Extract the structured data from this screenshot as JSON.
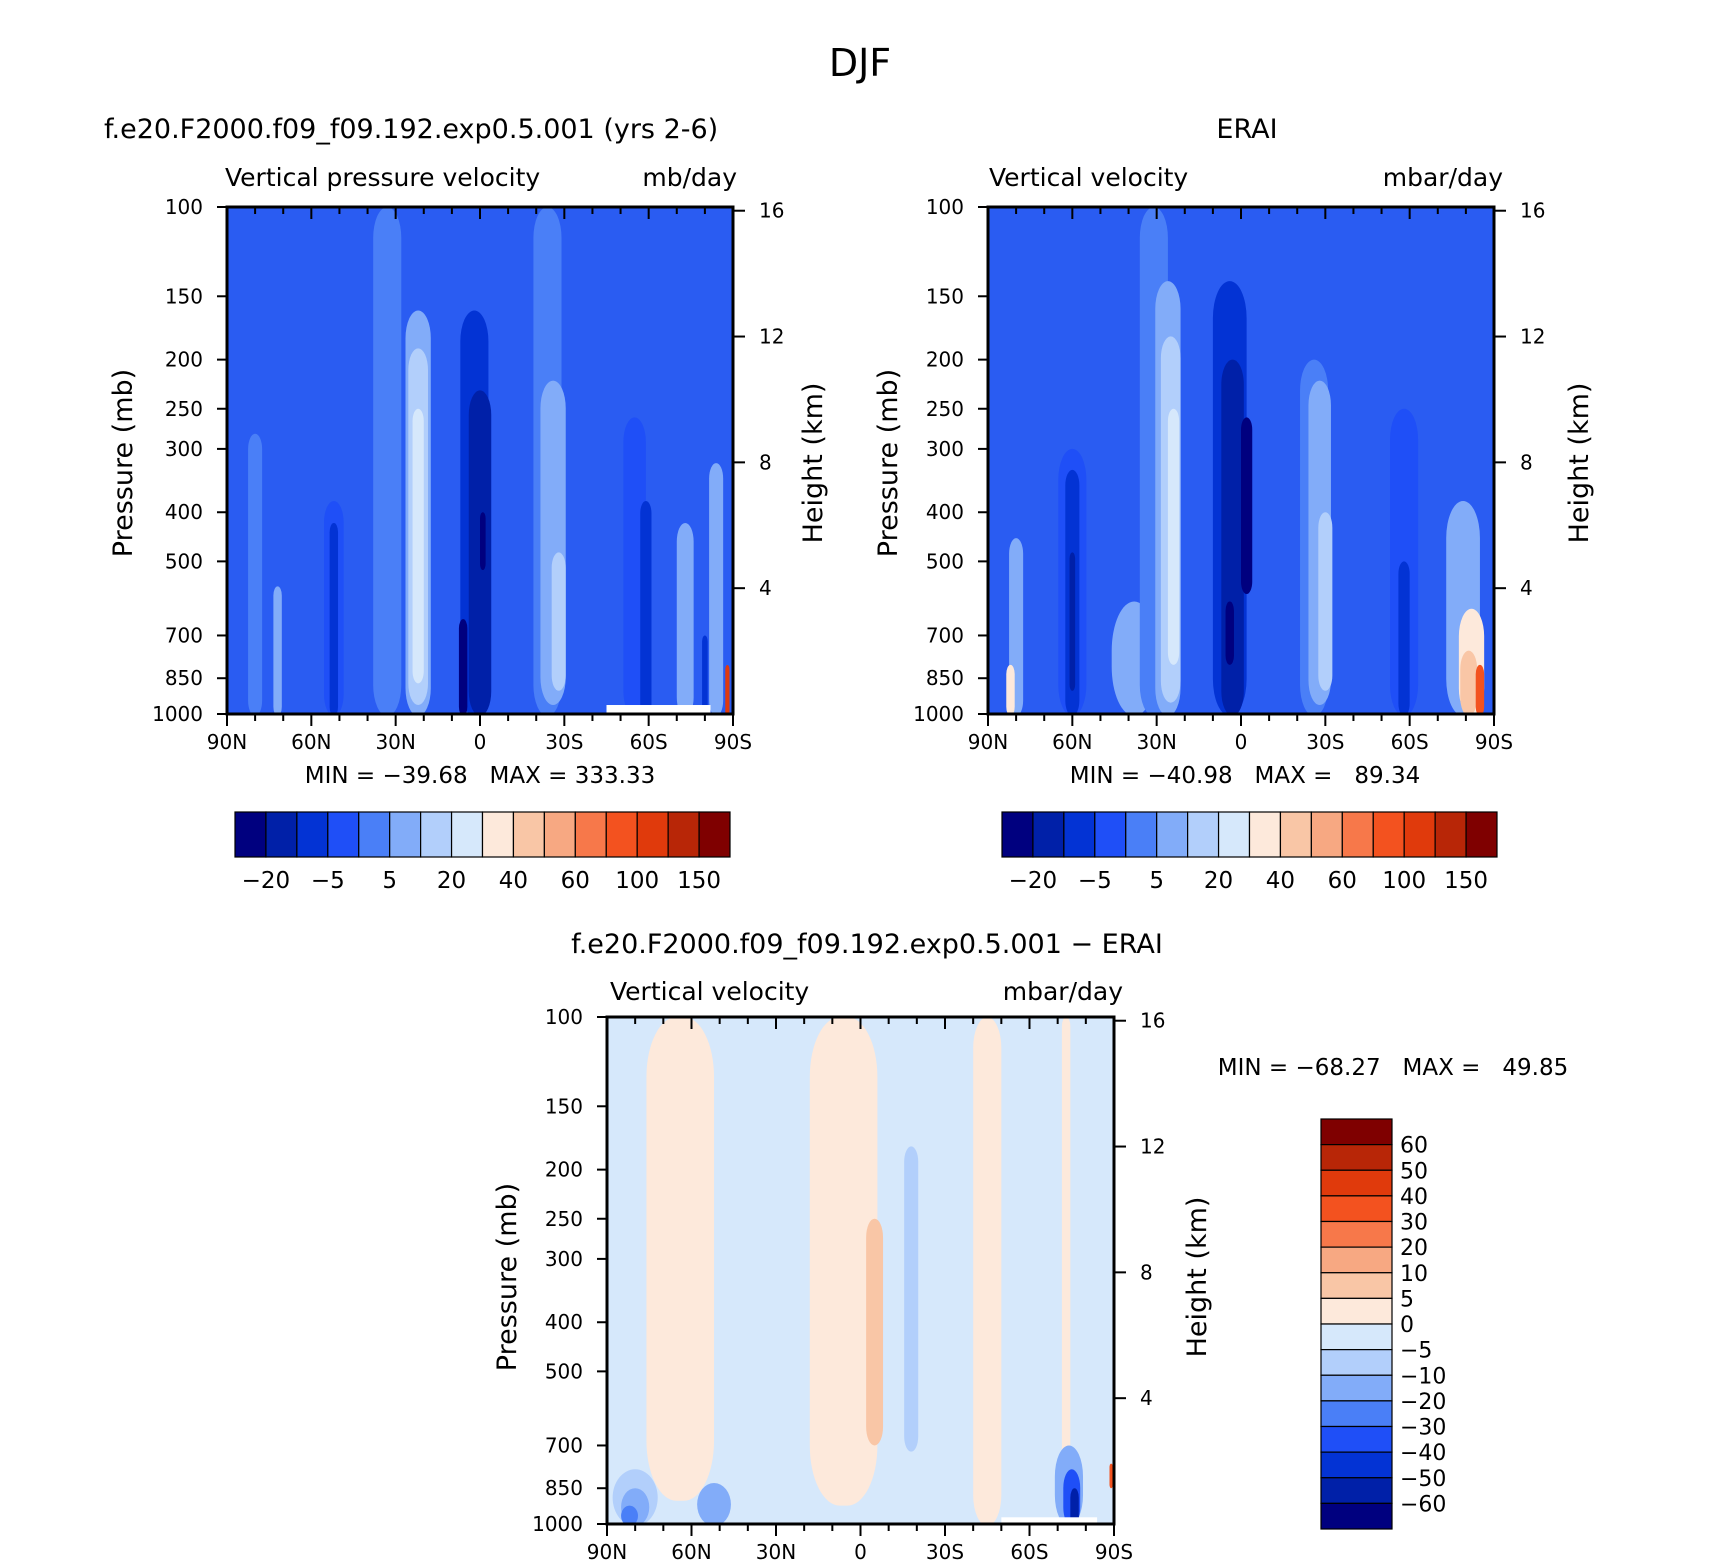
{
  "figure_title": "DJF",
  "chart_data": [
    {
      "type": "heatmap",
      "id": "model",
      "title": "f.e20.F2000.f09_f09.192.exp0.5.001 (yrs 2-6)",
      "subtitle_left": "Vertical pressure velocity",
      "subtitle_right": "mb/day",
      "xlabel": "",
      "ylabel": "Pressure (mb)",
      "y2label": "Height (km)",
      "x_ticks": [
        "90N",
        "60N",
        "30N",
        "0",
        "30S",
        "60S",
        "90S"
      ],
      "x_values": [
        90,
        60,
        30,
        0,
        -30,
        -60,
        -90
      ],
      "y_ticks": [
        100,
        150,
        200,
        250,
        300,
        400,
        500,
        700,
        850,
        1000
      ],
      "y2_ticks": [
        16,
        12,
        8,
        4
      ],
      "ylim": [
        1000,
        100
      ],
      "stats": "MIN = −39.68   MAX = 333.33",
      "colorbar": {
        "orientation": "horizontal",
        "labels": [
          "−20",
          "−5",
          "5",
          "20",
          "40",
          "60",
          "100",
          "150"
        ],
        "levels": [
          -30,
          -20,
          -10,
          -5,
          0,
          5,
          10,
          20,
          30,
          40,
          50,
          60,
          80,
          100,
          150
        ],
        "colors": [
          "#00007f",
          "#0020a8",
          "#0333d4",
          "#1f4ff7",
          "#4a7ff7",
          "#82acf9",
          "#b2cffb",
          "#d6e8fb",
          "#fde9db",
          "#f9c6a6",
          "#f7a882",
          "#f7784a",
          "#f3521f",
          "#e03a0c",
          "#b82607",
          "#7f0000"
        ]
      },
      "fields": {
        "bg": "#2a5cf2",
        "columns": [
          {
            "lat": 80,
            "width": 5,
            "top": 280,
            "bottom": 1000,
            "color": "#4a7ff7"
          },
          {
            "lat": 72,
            "width": 3,
            "top": 560,
            "bottom": 1000,
            "color": "#82acf9"
          },
          {
            "lat": 52,
            "width": 7,
            "top": 380,
            "bottom": 1000,
            "color": "#1f4ff7"
          },
          {
            "lat": 52,
            "width": 3,
            "top": 420,
            "bottom": 1000,
            "color": "#0333d4"
          },
          {
            "lat": 33,
            "width": 10,
            "top": 100,
            "bottom": 1000,
            "color": "#4a7ff7"
          },
          {
            "lat": 22,
            "width": 9,
            "top": 160,
            "bottom": 1000,
            "color": "#82acf9"
          },
          {
            "lat": 22,
            "width": 7,
            "top": 190,
            "bottom": 960,
            "color": "#b2cffb"
          },
          {
            "lat": 22,
            "width": 4,
            "top": 250,
            "bottom": 870,
            "color": "#d6e8fb"
          },
          {
            "lat": 2,
            "width": 10,
            "top": 160,
            "bottom": 1000,
            "color": "#0333d4"
          },
          {
            "lat": 0,
            "width": 8,
            "top": 230,
            "bottom": 1000,
            "color": "#0020a8"
          },
          {
            "lat": 6,
            "width": 3,
            "top": 650,
            "bottom": 1000,
            "color": "#00007f"
          },
          {
            "lat": -1,
            "width": 2,
            "top": 400,
            "bottom": 520,
            "color": "#00007f"
          },
          {
            "lat": -24,
            "width": 10,
            "top": 100,
            "bottom": 1000,
            "color": "#4a7ff7"
          },
          {
            "lat": -26,
            "width": 9,
            "top": 220,
            "bottom": 960,
            "color": "#82acf9"
          },
          {
            "lat": -28,
            "width": 5,
            "top": 480,
            "bottom": 900,
            "color": "#b2cffb"
          },
          {
            "lat": -55,
            "width": 8,
            "top": 260,
            "bottom": 1000,
            "color": "#1f4ff7"
          },
          {
            "lat": -59,
            "width": 4,
            "top": 380,
            "bottom": 1000,
            "color": "#0333d4"
          },
          {
            "lat": -73,
            "width": 6,
            "top": 420,
            "bottom": 1000,
            "color": "#82acf9"
          },
          {
            "lat": -84,
            "width": 5,
            "top": 320,
            "bottom": 1000,
            "color": "#82acf9"
          },
          {
            "lat": -80,
            "width": 2,
            "top": 700,
            "bottom": 1000,
            "color": "#0333d4"
          },
          {
            "lat": -88,
            "width": 1.5,
            "top": 800,
            "bottom": 1000,
            "color": "#e03a0c"
          }
        ],
        "missing": {
          "lat_from": -45,
          "lat_to": -82,
          "p_top": 960
        }
      }
    },
    {
      "type": "heatmap",
      "id": "obs",
      "title": "ERAI",
      "subtitle_left": "Vertical velocity",
      "subtitle_right": "mbar/day",
      "xlabel": "",
      "ylabel": "Pressure (mb)",
      "y2label": "Height (km)",
      "x_ticks": [
        "90N",
        "60N",
        "30N",
        "0",
        "30S",
        "60S",
        "90S"
      ],
      "x_values": [
        90,
        60,
        30,
        0,
        -30,
        -60,
        -90
      ],
      "y_ticks": [
        100,
        150,
        200,
        250,
        300,
        400,
        500,
        700,
        850,
        1000
      ],
      "y2_ticks": [
        16,
        12,
        8,
        4
      ],
      "ylim": [
        1000,
        100
      ],
      "stats": "MIN = −40.98   MAX =   89.34",
      "colorbar": {
        "orientation": "horizontal",
        "labels": [
          "−20",
          "−5",
          "5",
          "20",
          "40",
          "60",
          "100",
          "150"
        ],
        "levels": [
          -30,
          -20,
          -10,
          -5,
          0,
          5,
          10,
          20,
          30,
          40,
          50,
          60,
          80,
          100,
          150
        ],
        "colors": [
          "#00007f",
          "#0020a8",
          "#0333d4",
          "#1f4ff7",
          "#4a7ff7",
          "#82acf9",
          "#b2cffb",
          "#d6e8fb",
          "#fde9db",
          "#f9c6a6",
          "#f7a882",
          "#f7784a",
          "#f3521f",
          "#e03a0c",
          "#b82607",
          "#7f0000"
        ]
      },
      "fields": {
        "bg": "#2a5cf2",
        "columns": [
          {
            "lat": 80,
            "width": 5,
            "top": 450,
            "bottom": 1000,
            "color": "#82acf9"
          },
          {
            "lat": 82,
            "width": 3,
            "top": 800,
            "bottom": 1000,
            "color": "#fde9db"
          },
          {
            "lat": 60,
            "width": 10,
            "top": 300,
            "bottom": 1000,
            "color": "#1f4ff7"
          },
          {
            "lat": 60,
            "width": 5,
            "top": 330,
            "bottom": 1000,
            "color": "#0333d4"
          },
          {
            "lat": 60,
            "width": 2,
            "top": 480,
            "bottom": 900,
            "color": "#0020a8"
          },
          {
            "lat": 38,
            "width": 16,
            "top": 600,
            "bottom": 1000,
            "color": "#82acf9"
          },
          {
            "lat": 31,
            "width": 10,
            "top": 100,
            "bottom": 1000,
            "color": "#4a7ff7"
          },
          {
            "lat": 26,
            "width": 9,
            "top": 140,
            "bottom": 1000,
            "color": "#82acf9"
          },
          {
            "lat": 25,
            "width": 7,
            "top": 180,
            "bottom": 950,
            "color": "#b2cffb"
          },
          {
            "lat": 24,
            "width": 4,
            "top": 250,
            "bottom": 800,
            "color": "#d6e8fb"
          },
          {
            "lat": 4,
            "width": 12,
            "top": 140,
            "bottom": 1000,
            "color": "#0333d4"
          },
          {
            "lat": 3,
            "width": 8,
            "top": 200,
            "bottom": 1000,
            "color": "#0020a8"
          },
          {
            "lat": -2,
            "width": 4,
            "top": 260,
            "bottom": 580,
            "color": "#00007f"
          },
          {
            "lat": 4,
            "width": 3,
            "top": 600,
            "bottom": 800,
            "color": "#00007f"
          },
          {
            "lat": -26,
            "width": 10,
            "top": 200,
            "bottom": 1000,
            "color": "#4a7ff7"
          },
          {
            "lat": -28,
            "width": 8,
            "top": 220,
            "bottom": 960,
            "color": "#82acf9"
          },
          {
            "lat": -30,
            "width": 5,
            "top": 400,
            "bottom": 900,
            "color": "#b2cffb"
          },
          {
            "lat": -58,
            "width": 10,
            "top": 250,
            "bottom": 1000,
            "color": "#1f4ff7"
          },
          {
            "lat": -58,
            "width": 4,
            "top": 500,
            "bottom": 1000,
            "color": "#0333d4"
          },
          {
            "lat": -79,
            "width": 12,
            "top": 380,
            "bottom": 1000,
            "color": "#82acf9"
          },
          {
            "lat": -82,
            "width": 9,
            "top": 620,
            "bottom": 1000,
            "color": "#fde9db"
          },
          {
            "lat": -81,
            "width": 6,
            "top": 750,
            "bottom": 1000,
            "color": "#f9c6a6"
          },
          {
            "lat": -85,
            "width": 3,
            "top": 800,
            "bottom": 1000,
            "color": "#f3521f"
          }
        ],
        "missing": null
      }
    },
    {
      "type": "heatmap",
      "id": "diff",
      "title": "f.e20.F2000.f09_f09.192.exp0.5.001 − ERAI",
      "subtitle_left": "Vertical velocity",
      "subtitle_right": "mbar/day",
      "xlabel": "",
      "ylabel": "Pressure (mb)",
      "y2label": "Height (km)",
      "x_ticks": [
        "90N",
        "60N",
        "30N",
        "0",
        "30S",
        "60S",
        "90S"
      ],
      "x_values": [
        90,
        60,
        30,
        0,
        -30,
        -60,
        -90
      ],
      "y_ticks": [
        100,
        150,
        200,
        250,
        300,
        400,
        500,
        700,
        850,
        1000
      ],
      "y2_ticks": [
        16,
        12,
        8,
        4
      ],
      "ylim": [
        1000,
        100
      ],
      "stats": "MIN = −68.27   MAX =   49.85",
      "colorbar": {
        "orientation": "vertical",
        "labels": [
          "60",
          "50",
          "40",
          "30",
          "20",
          "10",
          "5",
          "0",
          "−5",
          "−10",
          "−20",
          "−30",
          "−40",
          "−50",
          "−60"
        ],
        "levels": [
          60,
          50,
          40,
          30,
          20,
          10,
          5,
          0,
          -5,
          -10,
          -20,
          -30,
          -40,
          -50,
          -60
        ],
        "colors": [
          "#7f0000",
          "#b82607",
          "#e03a0c",
          "#f3521f",
          "#f7784a",
          "#f7a882",
          "#f9c6a6",
          "#fde9db",
          "#d6e8fb",
          "#b2cffb",
          "#82acf9",
          "#4a7ff7",
          "#1f4ff7",
          "#0333d4",
          "#0020a8",
          "#00007f"
        ]
      },
      "fields": {
        "bg": "#d6e8fb",
        "columns": [
          {
            "lat": 64,
            "width": 24,
            "top": 100,
            "bottom": 900,
            "color": "#fde9db"
          },
          {
            "lat": 6,
            "width": 24,
            "top": 100,
            "bottom": 920,
            "color": "#fde9db"
          },
          {
            "lat": -45,
            "width": 10,
            "top": 100,
            "bottom": 1000,
            "color": "#fde9db"
          },
          {
            "lat": -73,
            "width": 3,
            "top": 100,
            "bottom": 900,
            "color": "#fde9db"
          },
          {
            "lat": -5,
            "width": 6,
            "top": 250,
            "bottom": 700,
            "color": "#f9c6a6"
          },
          {
            "lat": -18,
            "width": 5,
            "top": 180,
            "bottom": 720,
            "color": "#b2cffb"
          },
          {
            "lat": 80,
            "width": 16,
            "top": 780,
            "bottom": 1000,
            "color": "#b2cffb"
          },
          {
            "lat": 80,
            "width": 10,
            "top": 850,
            "bottom": 1000,
            "color": "#82acf9"
          },
          {
            "lat": 82,
            "width": 6,
            "top": 920,
            "bottom": 1000,
            "color": "#4a7ff7"
          },
          {
            "lat": 52,
            "width": 12,
            "top": 830,
            "bottom": 1000,
            "color": "#82acf9"
          },
          {
            "lat": -74,
            "width": 10,
            "top": 700,
            "bottom": 1000,
            "color": "#82acf9"
          },
          {
            "lat": -75,
            "width": 6,
            "top": 780,
            "bottom": 1000,
            "color": "#1f4ff7"
          },
          {
            "lat": -76,
            "width": 3,
            "top": 850,
            "bottom": 1000,
            "color": "#0020a8"
          },
          {
            "lat": -89,
            "width": 1.2,
            "top": 760,
            "bottom": 850,
            "color": "#f3521f"
          }
        ],
        "missing": {
          "lat_from": -50,
          "lat_to": -84,
          "p_top": 970
        }
      }
    }
  ]
}
